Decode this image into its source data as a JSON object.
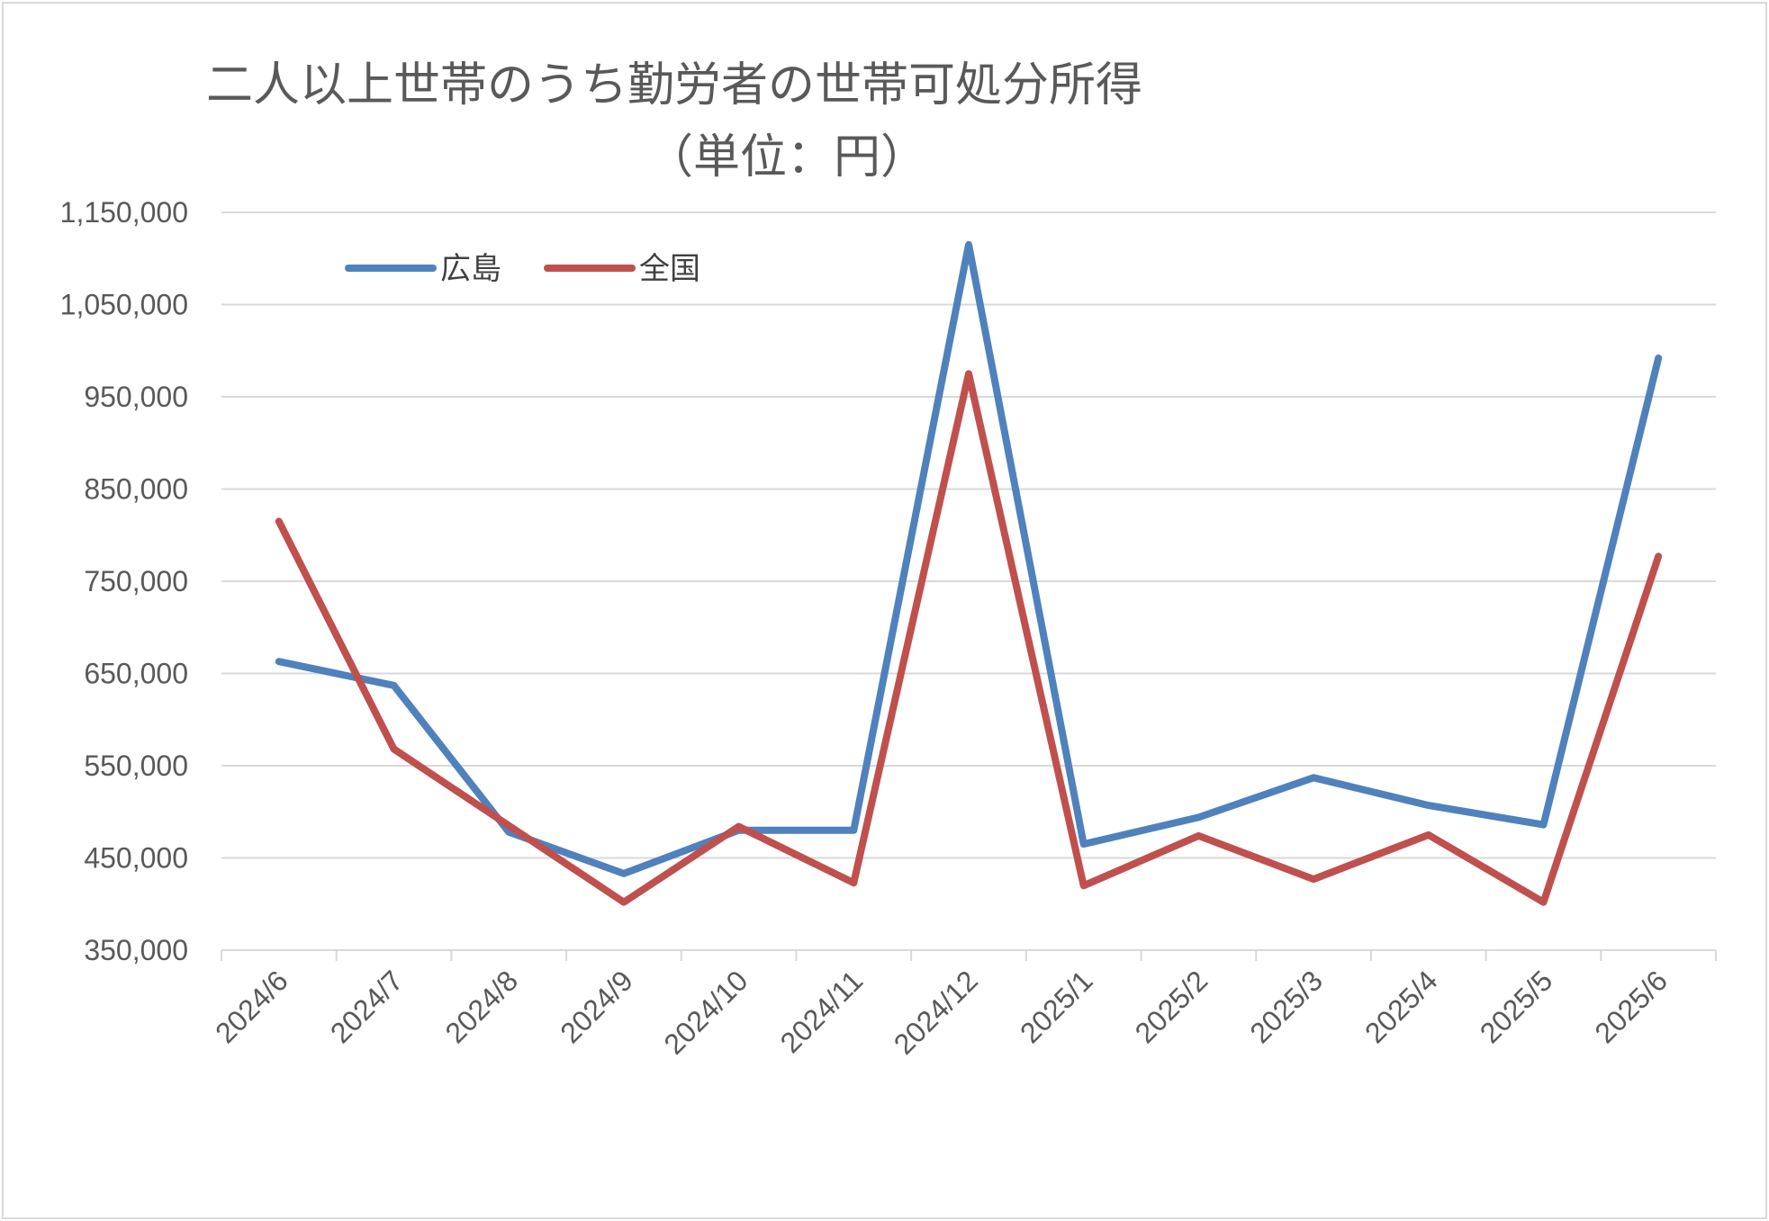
{
  "chart_data": {
    "type": "line",
    "title": "二人以上世帯のうち勤労者の世帯可処分所得",
    "subtitle": "（単位：円）",
    "categories": [
      "2024/6",
      "2024/7",
      "2024/8",
      "2024/9",
      "2024/10",
      "2024/11",
      "2024/12",
      "2025/1",
      "2025/2",
      "2025/3",
      "2025/4",
      "2025/5",
      "2025/6"
    ],
    "series": [
      {
        "name": "広島",
        "color": "#4f81bd",
        "values": [
          663000,
          637000,
          478000,
          433000,
          480000,
          480000,
          1115000,
          465000,
          494000,
          537000,
          507000,
          486000,
          992000
        ]
      },
      {
        "name": "全国",
        "color": "#c0504d",
        "values": [
          815000,
          568000,
          485000,
          402000,
          484000,
          423000,
          975000,
          420000,
          474000,
          427000,
          475000,
          402000,
          777000
        ]
      }
    ],
    "y_ticks": [
      "1,150,000",
      "1,050,000",
      "950,000",
      "850,000",
      "750,000",
      "650,000",
      "550,000",
      "450,000",
      "350,000"
    ],
    "ylim": [
      350000,
      1150000
    ],
    "grid": true,
    "legend": "top-left"
  }
}
